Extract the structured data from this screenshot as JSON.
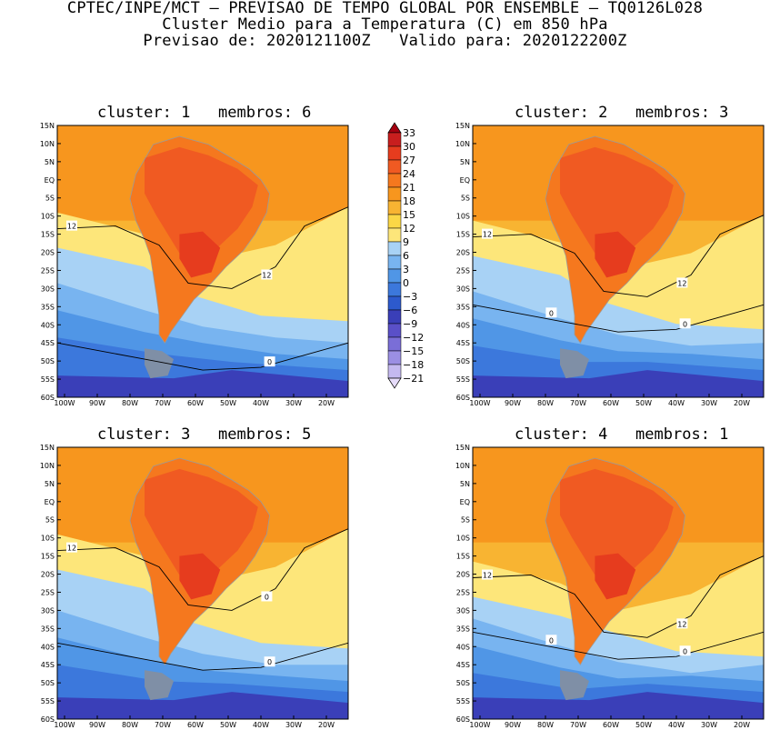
{
  "title": {
    "line1": "CPTEC/INPE/MCT — PREVISAO DE TEMPO GLOBAL POR ENSEMBLE — TQ0126L028",
    "line2": "Cluster Medio para a Temperatura (C) em 850 hPa",
    "line3": "Previsao de: 2020121100Z   Valido para: 2020122200Z"
  },
  "panels": [
    {
      "title": "cluster: 1   membros: 6",
      "contours": [
        "12",
        "12",
        "0"
      ]
    },
    {
      "title": "cluster: 2   membros: 3",
      "contours": [
        "12",
        "12",
        "0",
        "0"
      ]
    },
    {
      "title": "cluster: 3   membros: 5",
      "contours": [
        "12",
        "0",
        "0"
      ]
    },
    {
      "title": "cluster: 4   membros: 1",
      "contours": [
        "12",
        "12",
        "0",
        "0"
      ]
    }
  ],
  "lat_ticks": [
    "15N",
    "10N",
    "5N",
    "EQ",
    "5S",
    "10S",
    "15S",
    "20S",
    "25S",
    "30S",
    "35S",
    "40S",
    "45S",
    "50S",
    "55S",
    "60S"
  ],
  "lon_ticks": [
    "100W",
    "90W",
    "80W",
    "70W",
    "60W",
    "50W",
    "40W",
    "30W",
    "20W"
  ],
  "colorbar": {
    "labels": [
      "33",
      "30",
      "27",
      "24",
      "21",
      "18",
      "15",
      "12",
      "9",
      "6",
      "3",
      "0",
      "−3",
      "−6",
      "−9",
      "−12",
      "−15",
      "−18",
      "−21"
    ],
    "colors": [
      "#a50010",
      "#c81e1e",
      "#e63c1e",
      "#f05a22",
      "#f5781e",
      "#f7961e",
      "#f8b432",
      "#fbd746",
      "#fde67a",
      "#a8d2f5",
      "#78b4f0",
      "#5096e6",
      "#3c78dc",
      "#2d5acd",
      "#3a3fb8",
      "#5a50c8",
      "#7a6ed7",
      "#9b8fe3",
      "#c4b9f0",
      "#e6dcfa"
    ]
  }
}
